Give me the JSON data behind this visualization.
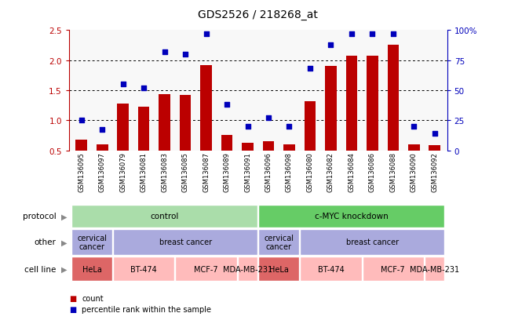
{
  "title": "GDS2526 / 218268_at",
  "samples": [
    "GSM136095",
    "GSM136097",
    "GSM136079",
    "GSM136081",
    "GSM136083",
    "GSM136085",
    "GSM136087",
    "GSM136089",
    "GSM136091",
    "GSM136096",
    "GSM136098",
    "GSM136080",
    "GSM136082",
    "GSM136084",
    "GSM136086",
    "GSM136088",
    "GSM136090",
    "GSM136092"
  ],
  "bar_values": [
    0.67,
    0.6,
    1.28,
    1.23,
    1.43,
    1.42,
    1.92,
    0.75,
    0.63,
    0.65,
    0.6,
    1.32,
    1.9,
    2.07,
    2.07,
    2.25,
    0.6,
    0.58
  ],
  "scatter_values": [
    25,
    17,
    55,
    52,
    82,
    80,
    97,
    38,
    20,
    27,
    20,
    68,
    88,
    97,
    97,
    97,
    20,
    14
  ],
  "ylim_left": [
    0.5,
    2.5
  ],
  "ylim_right": [
    0,
    100
  ],
  "yticks_left": [
    0.5,
    1.0,
    1.5,
    2.0,
    2.5
  ],
  "yticks_right": [
    0,
    25,
    50,
    75,
    100
  ],
  "ytick_labels_right": [
    "0",
    "25",
    "50",
    "75",
    "100%"
  ],
  "bar_color": "#bb0000",
  "scatter_color": "#0000bb",
  "protocol_row": {
    "label": "protocol",
    "groups": [
      {
        "text": "control",
        "start": 0,
        "end": 9,
        "color": "#aaddaa"
      },
      {
        "text": "c-MYC knockdown",
        "start": 9,
        "end": 18,
        "color": "#66cc66"
      }
    ]
  },
  "other_row": {
    "label": "other",
    "groups": [
      {
        "text": "cervical\ncancer",
        "start": 0,
        "end": 2,
        "color": "#aaaadd"
      },
      {
        "text": "breast cancer",
        "start": 2,
        "end": 9,
        "color": "#aaaadd"
      },
      {
        "text": "cervical\ncancer",
        "start": 9,
        "end": 11,
        "color": "#aaaadd"
      },
      {
        "text": "breast cancer",
        "start": 11,
        "end": 18,
        "color": "#aaaadd"
      }
    ]
  },
  "cellline_row": {
    "label": "cell line",
    "groups": [
      {
        "text": "HeLa",
        "start": 0,
        "end": 2,
        "color": "#dd6666"
      },
      {
        "text": "BT-474",
        "start": 2,
        "end": 5,
        "color": "#ffbbbb"
      },
      {
        "text": "MCF-7",
        "start": 5,
        "end": 8,
        "color": "#ffbbbb"
      },
      {
        "text": "MDA-MB-231",
        "start": 8,
        "end": 9,
        "color": "#ffbbbb"
      },
      {
        "text": "HeLa",
        "start": 9,
        "end": 11,
        "color": "#dd6666"
      },
      {
        "text": "BT-474",
        "start": 11,
        "end": 14,
        "color": "#ffbbbb"
      },
      {
        "text": "MCF-7",
        "start": 14,
        "end": 17,
        "color": "#ffbbbb"
      },
      {
        "text": "MDA-MB-231",
        "start": 17,
        "end": 18,
        "color": "#ffbbbb"
      }
    ]
  },
  "legend_items": [
    {
      "color": "#bb0000",
      "label": "count"
    },
    {
      "color": "#0000bb",
      "label": "percentile rank within the sample"
    }
  ],
  "row_labels": [
    "protocol",
    "other",
    "cell line"
  ],
  "chart_bg": "#f8f8f8"
}
